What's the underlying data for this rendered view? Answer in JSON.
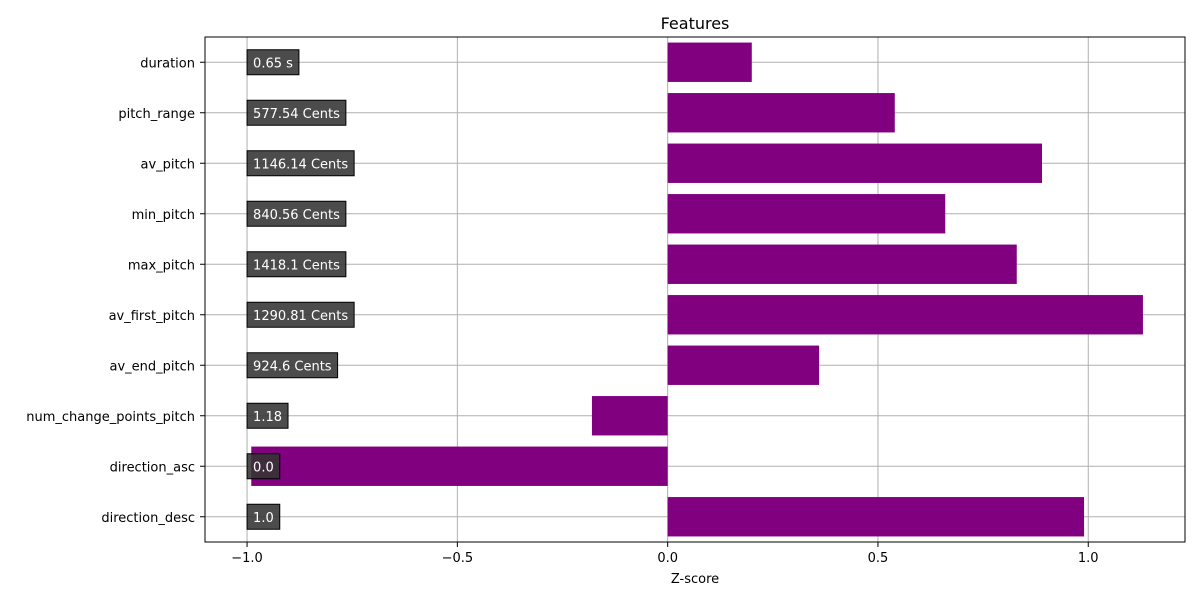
{
  "chart_data": {
    "type": "bar",
    "orientation": "horizontal",
    "title": "Features",
    "xlabel": "Z-score",
    "ylabel": "",
    "xlim": [
      -1.1,
      1.23
    ],
    "xticks": [
      -1.0,
      -0.5,
      0.0,
      0.5,
      1.0
    ],
    "xtick_labels": [
      "−1.0",
      "−0.5",
      "0.0",
      "0.5",
      "1.0"
    ],
    "grid": true,
    "bar_color": "#800080",
    "label_box_color": "#333333",
    "label_text_color": "#ffffff",
    "categories": [
      "duration",
      "pitch_range",
      "av_pitch",
      "min_pitch",
      "max_pitch",
      "av_first_pitch",
      "av_end_pitch",
      "num_change_points_pitch",
      "direction_asc",
      "direction_desc"
    ],
    "values": [
      0.2,
      0.54,
      0.89,
      0.66,
      0.83,
      1.13,
      0.36,
      -0.18,
      -0.99,
      0.99
    ],
    "value_labels": [
      "0.65 s",
      "577.54 Cents",
      "1146.14 Cents",
      "840.56 Cents",
      "1418.1 Cents",
      "1290.81 Cents",
      "924.6 Cents",
      "1.18",
      "0.0",
      "1.0"
    ]
  }
}
